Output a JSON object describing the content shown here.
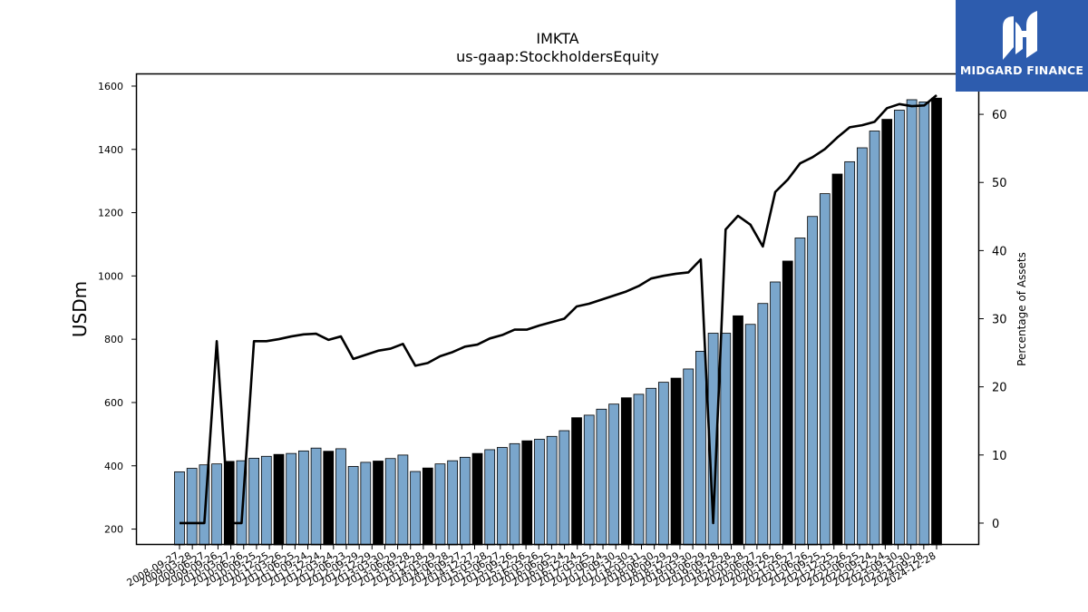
{
  "chart_data": {
    "type": "bar",
    "title": "IMKTA",
    "subtitle": "us-gaap:StockholdersEquity",
    "ylabel": "USDm",
    "y2label": "Percentage of Assets",
    "ylim": [
      150,
      1640
    ],
    "y2lim": [
      -3.2,
      66
    ],
    "yticks": [
      200,
      400,
      600,
      800,
      1000,
      1200,
      1400,
      1600
    ],
    "y2ticks": [
      0,
      10,
      20,
      30,
      40,
      50,
      60
    ],
    "colors": {
      "bar_default": "#7aa6cc",
      "bar_highlight": "#000000",
      "line": "#000000"
    },
    "series": [
      {
        "name": "StockholdersEquity",
        "type": "bar",
        "values": [
          381,
          392,
          403,
          406,
          414,
          416,
          424,
          430,
          436,
          439,
          447,
          456,
          446,
          454,
          398,
          411,
          415,
          423,
          434,
          382,
          393,
          406,
          416,
          427,
          439,
          451,
          458,
          470,
          479,
          484,
          493,
          511,
          552,
          560,
          579,
          595,
          615,
          626,
          645,
          664,
          677,
          706,
          762,
          819,
          819,
          874,
          847,
          913,
          981,
          1047,
          1120,
          1188,
          1260,
          1322,
          1361,
          1405,
          1458,
          1495,
          1524,
          1557,
          1550,
          1562
        ],
        "highlight": [
          false,
          false,
          false,
          false,
          true,
          false,
          false,
          false,
          true,
          false,
          false,
          false,
          true,
          false,
          false,
          false,
          true,
          false,
          false,
          false,
          true,
          false,
          false,
          false,
          true,
          false,
          false,
          false,
          true,
          false,
          false,
          false,
          true,
          false,
          false,
          false,
          true,
          false,
          false,
          false,
          true,
          false,
          false,
          false,
          false,
          true,
          false,
          false,
          false,
          true,
          false,
          false,
          false,
          true,
          false,
          false,
          false,
          true,
          false,
          false,
          false,
          true
        ]
      },
      {
        "name": "Percentage of Assets",
        "type": "line",
        "values": [
          0,
          0,
          0,
          26.7,
          0,
          0,
          26.7,
          26.7,
          27.0,
          27.4,
          27.7,
          27.8,
          26.9,
          27.4,
          24.1,
          24.7,
          25.3,
          25.6,
          26.3,
          23.1,
          23.5,
          24.5,
          25.1,
          25.9,
          26.2,
          27.1,
          27.6,
          28.4,
          28.4,
          29.0,
          29.5,
          30.0,
          31.8,
          32.2,
          32.8,
          33.4,
          34.0,
          34.8,
          35.9,
          36.3,
          36.6,
          36.8,
          38.7,
          0,
          43.1,
          45.1,
          43.8,
          40.6,
          48.6,
          50.4,
          52.8,
          53.7,
          54.9,
          56.6,
          58.1,
          58.4,
          58.9,
          60.9,
          61.5,
          61.2,
          61.3,
          62.8
        ]
      }
    ],
    "categories": [
      "2008-09-27",
      "2008-12-27",
      "2009-03-28",
      "2009-06-27",
      "2009-09-26",
      "2009-12-26",
      "2010-03-27",
      "2010-06-26",
      "2010-09-25",
      "2010-12-25",
      "2011-03-26",
      "2011-06-25",
      "2011-09-24",
      "2011-12-24",
      "2012-03-24",
      "2012-06-23",
      "2012-09-29",
      "2012-12-29",
      "2013-03-30",
      "2013-06-29",
      "2013-09-28",
      "2013-12-28",
      "2014-03-29",
      "2014-06-28",
      "2014-09-27",
      "2014-12-27",
      "2015-03-28",
      "2015-06-27",
      "2015-09-26",
      "2015-12-26",
      "2016-03-26",
      "2016-06-25",
      "2016-09-24",
      "2016-12-24",
      "2017-03-25",
      "2017-06-24",
      "2017-09-30",
      "2017-12-30",
      "2018-03-31",
      "2018-06-30",
      "2018-09-29",
      "2018-12-29",
      "2019-03-30",
      "2019-06-29",
      "2019-09-28",
      "2019-12-28",
      "2020-03-28",
      "2020-06-27",
      "2020-09-26",
      "2020-12-26",
      "2021-03-27",
      "2021-06-26",
      "2021-09-25",
      "2021-12-25",
      "2022-03-26",
      "2022-06-25",
      "2022-09-24",
      "2022-12-24",
      "2023-09-30",
      "2023-12-30",
      "2024-09-28",
      "2024-12-28"
    ],
    "xtick_labels": [
      "2008-09-27",
      "2009-03-28",
      "2009-06-27",
      "2009-09-26",
      "2010-03-27",
      "2010-06-26",
      "2010-09-25",
      "2010-12-25",
      "2011-03-26",
      "2011-06-25",
      "2011-09-24",
      "2011-12-24",
      "2012-03-24",
      "2012-06-23",
      "2012-09-29",
      "2012-12-29",
      "2013-03-30",
      "2013-06-29",
      "2013-09-28",
      "2013-12-28",
      "2014-03-29",
      "2014-06-28",
      "2014-09-27",
      "2014-12-27",
      "2015-03-28",
      "2015-06-27",
      "2015-09-26",
      "2015-12-26",
      "2016-03-26",
      "2016-06-25",
      "2016-09-24",
      "2016-12-24",
      "2017-03-25",
      "2017-06-24",
      "2017-09-30",
      "2017-12-30",
      "2018-03-31",
      "2018-06-30",
      "2018-09-29",
      "2018-12-29",
      "2019-03-30",
      "2019-06-29",
      "2019-09-28",
      "2019-12-28",
      "2020-03-28",
      "2020-06-27",
      "2020-09-26",
      "2020-12-26",
      "2021-03-27",
      "2021-06-26",
      "2021-09-25",
      "2021-12-25",
      "2022-03-26",
      "2022-06-25",
      "2022-09-24",
      "2022-12-24",
      "2023-09-30",
      "2023-12-30",
      "2024-09-28",
      "2024-12-28"
    ],
    "grid": false
  },
  "branding": {
    "logo_text": "MIDGARD FINANCE",
    "logo_icon": "midgard-m-icon"
  }
}
